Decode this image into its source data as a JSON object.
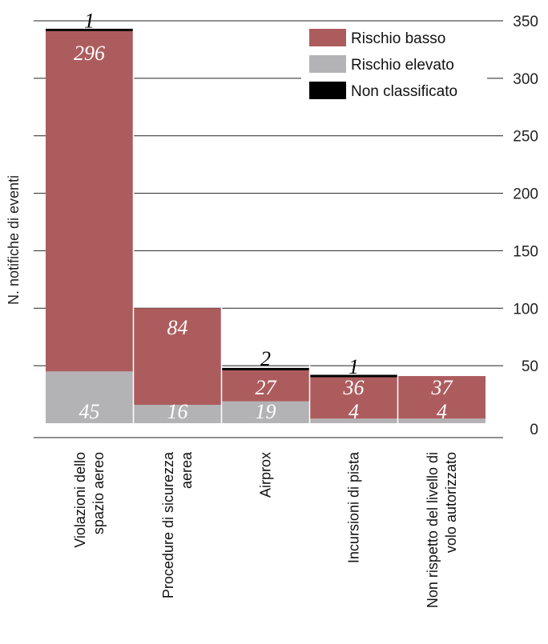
{
  "chart_data": {
    "type": "bar",
    "stacked": true,
    "title": "",
    "xlabel": "",
    "ylabel": "N. notifiche di eventi",
    "ylim": [
      0,
      350
    ],
    "yticks": [
      0,
      50,
      100,
      150,
      200,
      250,
      300,
      350
    ],
    "y_axis_side": "right",
    "grid": true,
    "legend_position": "top-right",
    "categories": [
      [
        "Violazioni dello",
        "spazio aereo"
      ],
      [
        "Procedure di sicurezza",
        "aerea"
      ],
      [
        "Airprox"
      ],
      [
        "Incursioni di pista"
      ],
      [
        "Non rispetto del livello di",
        "volo autorizzato"
      ]
    ],
    "series": [
      {
        "name": "Rischio elevato",
        "color": "#b3b3b5",
        "values": [
          45,
          16,
          19,
          4,
          4
        ]
      },
      {
        "name": "Rischio basso",
        "color": "#ad5c5e",
        "values": [
          296,
          84,
          27,
          36,
          37
        ]
      },
      {
        "name": "Non classificato",
        "color": "#000000",
        "values": [
          1,
          0,
          2,
          1,
          0
        ]
      }
    ],
    "legend_order": [
      "Rischio basso",
      "Rischio elevato",
      "Non classificato"
    ]
  }
}
